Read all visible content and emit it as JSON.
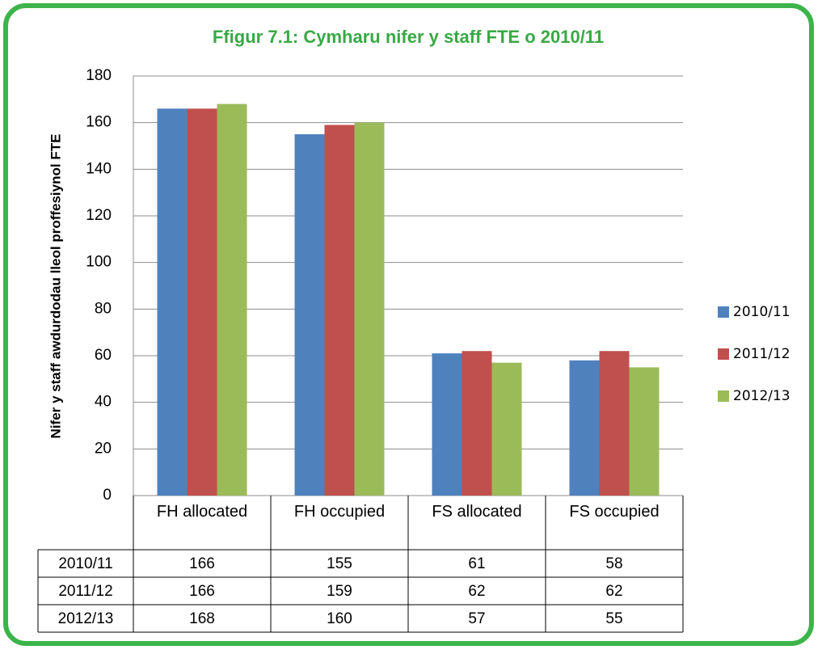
{
  "chart_data": {
    "type": "bar",
    "title": "Ffigur 7.1: Cymharu nifer y staff FTE o 2010/11",
    "y_label": "Nifer y staff awdurdodau lleol proffesiynol FTE",
    "categories": [
      "FH allocated",
      "FH occupied",
      "FS allocated",
      "FS occupied"
    ],
    "series": [
      {
        "name": "2010/11",
        "color": "#4f81bd",
        "values": [
          166,
          155,
          61,
          58
        ]
      },
      {
        "name": "2011/12",
        "color": "#c0504d",
        "values": [
          166,
          159,
          62,
          62
        ]
      },
      {
        "name": "2012/13",
        "color": "#9bbb59",
        "values": [
          168,
          160,
          57,
          55
        ]
      }
    ],
    "ylim": [
      0,
      180
    ],
    "yticks": [
      0,
      20,
      40,
      60,
      80,
      100,
      120,
      140,
      160,
      180
    ],
    "grid": true,
    "legend": "right",
    "data_table": true
  }
}
